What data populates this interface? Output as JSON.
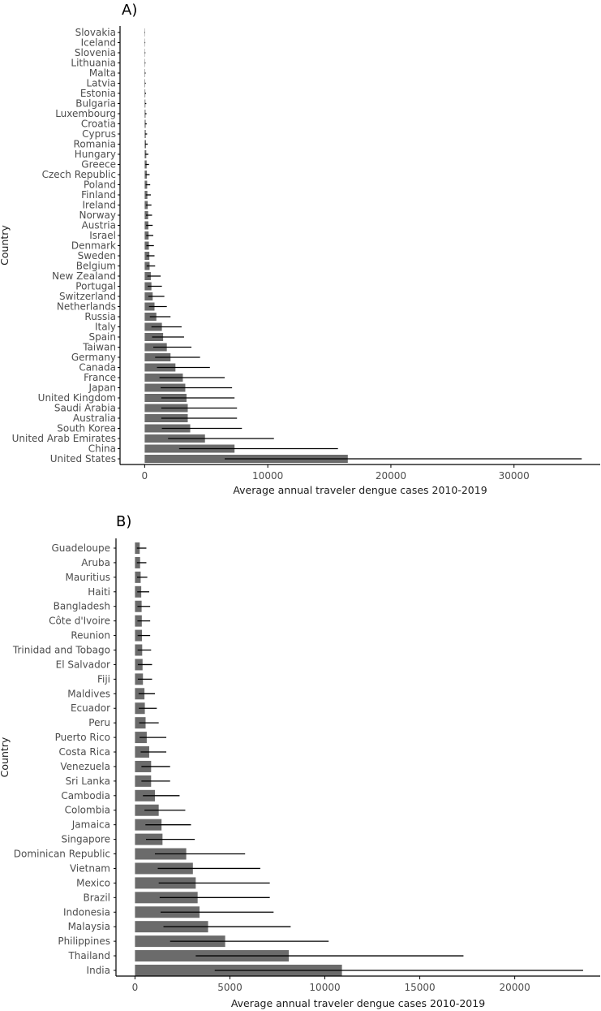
{
  "colors": {
    "bar": "#6b6b6b",
    "error_bar": "#000000",
    "axis": "#000000",
    "tick_text": "#4d4d4d",
    "background": "#ffffff"
  },
  "chart_data": [
    {
      "type": "bar",
      "orientation": "horizontal",
      "panel_label": "A)",
      "xlabel": "Average annual traveler dengue cases 2010-2019",
      "ylabel": "Country",
      "xlim": [
        -2000,
        37000
      ],
      "xticks": [
        0,
        10000,
        20000,
        30000
      ],
      "xtick_labels": [
        "0",
        "10000",
        "20000",
        "30000"
      ],
      "categories": [
        "Slovakia",
        "Iceland",
        "Slovenia",
        "Lithuania",
        "Malta",
        "Latvia",
        "Estonia",
        "Bulgaria",
        "Luxembourg",
        "Croatia",
        "Cyprus",
        "Romania",
        "Hungary",
        "Greece",
        "Czech Republic",
        "Poland",
        "Finland",
        "Ireland",
        "Norway",
        "Austria",
        "Israel",
        "Denmark",
        "Sweden",
        "Belgium",
        "New Zealand",
        "Portugal",
        "Switzerland",
        "Netherlands",
        "Russia",
        "Italy",
        "Spain",
        "Taiwan",
        "Germany",
        "Canada",
        "France",
        "Japan",
        "United Kingdom",
        "Saudi Arabia",
        "Australia",
        "South Korea",
        "United Arab Emirates",
        "China",
        "United States"
      ],
      "values": [
        15,
        20,
        25,
        30,
        35,
        40,
        50,
        60,
        70,
        80,
        90,
        110,
        130,
        160,
        180,
        200,
        220,
        250,
        280,
        300,
        320,
        340,
        380,
        400,
        500,
        550,
        650,
        800,
        950,
        1400,
        1500,
        1800,
        2100,
        2500,
        3100,
        3300,
        3400,
        3500,
        3500,
        3700,
        4900,
        7300,
        16500
      ],
      "error_low": [
        5,
        5,
        8,
        10,
        10,
        15,
        20,
        25,
        30,
        30,
        35,
        45,
        50,
        60,
        70,
        80,
        90,
        100,
        110,
        120,
        130,
        140,
        150,
        160,
        220,
        250,
        300,
        350,
        420,
        550,
        600,
        700,
        850,
        1000,
        1200,
        1300,
        1350,
        1350,
        1350,
        1400,
        1900,
        2800,
        6500
      ],
      "error_high": [
        40,
        50,
        60,
        70,
        80,
        90,
        110,
        130,
        150,
        170,
        200,
        250,
        300,
        350,
        400,
        450,
        500,
        550,
        600,
        650,
        700,
        750,
        800,
        850,
        1300,
        1400,
        1600,
        1800,
        2100,
        3000,
        3200,
        3800,
        4500,
        5300,
        6500,
        7100,
        7300,
        7500,
        7500,
        7900,
        10500,
        15700,
        35500
      ]
    },
    {
      "type": "bar",
      "orientation": "horizontal",
      "panel_label": "B)",
      "xlabel": "Average annual traveler dengue cases 2010-2019",
      "ylabel": "Country",
      "xlim": [
        -1000,
        24500
      ],
      "xticks": [
        0,
        5000,
        10000,
        15000,
        20000
      ],
      "xtick_labels": [
        "0",
        "5000",
        "10000",
        "15000",
        "20000"
      ],
      "categories": [
        "Guadeloupe",
        "Aruba",
        "Mauritius",
        "Haiti",
        "Bangladesh",
        "Côte d'Ivoire",
        "Reunion",
        "Trinidad and Tobago",
        "El Salvador",
        "Fiji",
        "Maldives",
        "Ecuador",
        "Peru",
        "Puerto Rico",
        "Costa Rica",
        "Venezuela",
        "Sri Lanka",
        "Cambodia",
        "Colombia",
        "Jamaica",
        "Singapore",
        "Dominican Republic",
        "Vietnam",
        "Mexico",
        "Brazil",
        "Indonesia",
        "Malaysia",
        "Philippines",
        "Thailand",
        "India"
      ],
      "values": [
        250,
        270,
        300,
        330,
        350,
        360,
        370,
        380,
        400,
        420,
        500,
        520,
        560,
        620,
        750,
        850,
        850,
        1050,
        1250,
        1400,
        1450,
        2700,
        3050,
        3200,
        3300,
        3400,
        3850,
        4750,
        8100,
        10900
      ],
      "error_low": [
        100,
        100,
        110,
        120,
        130,
        130,
        140,
        140,
        150,
        150,
        190,
        200,
        220,
        240,
        300,
        340,
        340,
        420,
        500,
        550,
        580,
        1050,
        1200,
        1250,
        1300,
        1350,
        1500,
        1850,
        3200,
        4200
      ],
      "error_high": [
        600,
        600,
        650,
        750,
        800,
        800,
        800,
        850,
        900,
        900,
        1050,
        1150,
        1250,
        1650,
        1650,
        1850,
        1850,
        2350,
        2650,
        2950,
        3150,
        5800,
        6600,
        7100,
        7100,
        7300,
        8200,
        10200,
        17300,
        23600
      ]
    }
  ]
}
